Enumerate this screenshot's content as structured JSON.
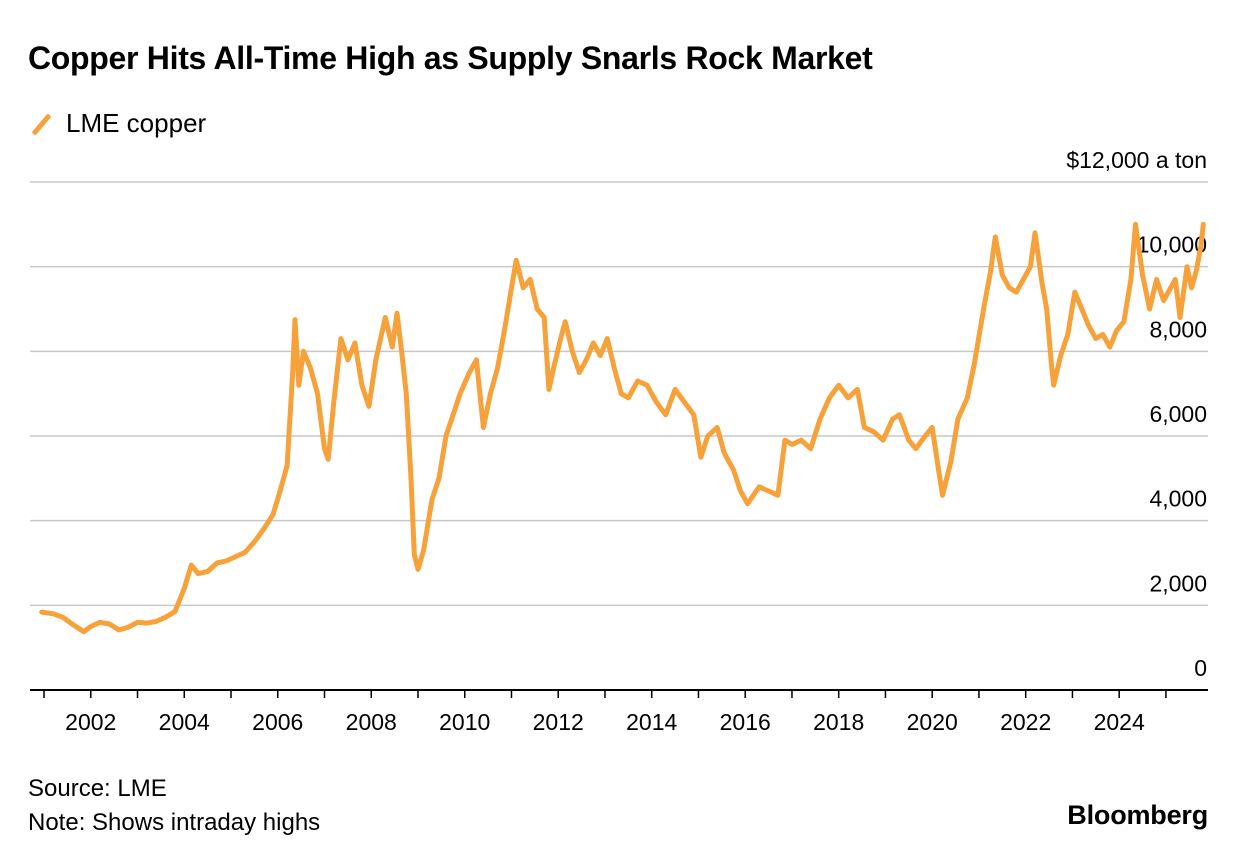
{
  "title": "Copper Hits All-Time High as Supply Snarls Rock Market",
  "legend": {
    "label": "LME copper",
    "color": "#f7a13a"
  },
  "footer": {
    "source": "Source: LME",
    "note": "Note: Shows intraday highs",
    "brand": "Bloomberg"
  },
  "chart_data": {
    "type": "line",
    "title": "Copper Hits All-Time High as Supply Snarls Rock Market",
    "xlabel": "",
    "ylabel": "",
    "y_unit_label": "$12,000 a ton",
    "ylim": [
      0,
      12000
    ],
    "xlim": [
      2000.7,
      2025.9
    ],
    "grid": true,
    "legend_position": "top-left",
    "x_ticks": [
      2002,
      2004,
      2006,
      2008,
      2010,
      2012,
      2014,
      2016,
      2018,
      2020,
      2022,
      2024
    ],
    "x_tick_labels": [
      "2002",
      "2004",
      "2006",
      "2008",
      "2010",
      "2012",
      "2014",
      "2016",
      "2018",
      "2020",
      "2022",
      "2024"
    ],
    "y_ticks": [
      0,
      2000,
      4000,
      6000,
      8000,
      10000,
      12000
    ],
    "y_tick_labels": [
      "0",
      "2,000",
      "4,000",
      "6,000",
      "8,000",
      "10,000",
      "$12,000 a ton"
    ],
    "series": [
      {
        "name": "LME copper",
        "color": "#f7a13a",
        "points": [
          [
            2000.95,
            1840
          ],
          [
            2001.2,
            1800
          ],
          [
            2001.4,
            1720
          ],
          [
            2001.6,
            1560
          ],
          [
            2001.75,
            1450
          ],
          [
            2001.85,
            1380
          ],
          [
            2002.0,
            1500
          ],
          [
            2002.2,
            1600
          ],
          [
            2002.4,
            1560
          ],
          [
            2002.6,
            1420
          ],
          [
            2002.8,
            1480
          ],
          [
            2003.0,
            1600
          ],
          [
            2003.2,
            1580
          ],
          [
            2003.4,
            1620
          ],
          [
            2003.6,
            1720
          ],
          [
            2003.8,
            1850
          ],
          [
            2004.0,
            2400
          ],
          [
            2004.15,
            2950
          ],
          [
            2004.3,
            2750
          ],
          [
            2004.5,
            2800
          ],
          [
            2004.7,
            3000
          ],
          [
            2004.9,
            3050
          ],
          [
            2005.1,
            3150
          ],
          [
            2005.3,
            3250
          ],
          [
            2005.5,
            3500
          ],
          [
            2005.7,
            3800
          ],
          [
            2005.9,
            4150
          ],
          [
            2006.05,
            4700
          ],
          [
            2006.2,
            5300
          ],
          [
            2006.32,
            7500
          ],
          [
            2006.37,
            8750
          ],
          [
            2006.45,
            7200
          ],
          [
            2006.55,
            8000
          ],
          [
            2006.7,
            7600
          ],
          [
            2006.85,
            7000
          ],
          [
            2007.0,
            5700
          ],
          [
            2007.08,
            5450
          ],
          [
            2007.2,
            6800
          ],
          [
            2007.35,
            8300
          ],
          [
            2007.5,
            7800
          ],
          [
            2007.65,
            8200
          ],
          [
            2007.8,
            7200
          ],
          [
            2007.95,
            6700
          ],
          [
            2008.1,
            7800
          ],
          [
            2008.2,
            8300
          ],
          [
            2008.3,
            8800
          ],
          [
            2008.45,
            8100
          ],
          [
            2008.55,
            8900
          ],
          [
            2008.65,
            8000
          ],
          [
            2008.75,
            7000
          ],
          [
            2008.85,
            5000
          ],
          [
            2008.92,
            3200
          ],
          [
            2009.0,
            2850
          ],
          [
            2009.12,
            3300
          ],
          [
            2009.3,
            4500
          ],
          [
            2009.45,
            5000
          ],
          [
            2009.6,
            6000
          ],
          [
            2009.75,
            6500
          ],
          [
            2009.9,
            7000
          ],
          [
            2010.1,
            7500
          ],
          [
            2010.25,
            7800
          ],
          [
            2010.4,
            6200
          ],
          [
            2010.55,
            7000
          ],
          [
            2010.7,
            7600
          ],
          [
            2010.85,
            8500
          ],
          [
            2011.0,
            9500
          ],
          [
            2011.1,
            10150
          ],
          [
            2011.25,
            9500
          ],
          [
            2011.4,
            9700
          ],
          [
            2011.55,
            9000
          ],
          [
            2011.7,
            8800
          ],
          [
            2011.8,
            7100
          ],
          [
            2011.9,
            7600
          ],
          [
            2012.05,
            8300
          ],
          [
            2012.15,
            8700
          ],
          [
            2012.3,
            8000
          ],
          [
            2012.45,
            7500
          ],
          [
            2012.6,
            7800
          ],
          [
            2012.75,
            8200
          ],
          [
            2012.9,
            7900
          ],
          [
            2013.05,
            8300
          ],
          [
            2013.2,
            7600
          ],
          [
            2013.35,
            7000
          ],
          [
            2013.5,
            6900
          ],
          [
            2013.7,
            7300
          ],
          [
            2013.9,
            7200
          ],
          [
            2014.1,
            6800
          ],
          [
            2014.3,
            6500
          ],
          [
            2014.5,
            7100
          ],
          [
            2014.7,
            6800
          ],
          [
            2014.9,
            6500
          ],
          [
            2015.05,
            5500
          ],
          [
            2015.2,
            6000
          ],
          [
            2015.4,
            6200
          ],
          [
            2015.55,
            5600
          ],
          [
            2015.75,
            5200
          ],
          [
            2015.9,
            4700
          ],
          [
            2016.05,
            4400
          ],
          [
            2016.3,
            4800
          ],
          [
            2016.5,
            4700
          ],
          [
            2016.7,
            4600
          ],
          [
            2016.85,
            5900
          ],
          [
            2017.0,
            5800
          ],
          [
            2017.2,
            5900
          ],
          [
            2017.4,
            5700
          ],
          [
            2017.6,
            6400
          ],
          [
            2017.8,
            6900
          ],
          [
            2018.0,
            7200
          ],
          [
            2018.2,
            6900
          ],
          [
            2018.4,
            7100
          ],
          [
            2018.55,
            6200
          ],
          [
            2018.75,
            6100
          ],
          [
            2018.95,
            5900
          ],
          [
            2019.15,
            6400
          ],
          [
            2019.3,
            6500
          ],
          [
            2019.5,
            5900
          ],
          [
            2019.65,
            5700
          ],
          [
            2019.85,
            6000
          ],
          [
            2020.0,
            6200
          ],
          [
            2020.15,
            5100
          ],
          [
            2020.22,
            4600
          ],
          [
            2020.4,
            5400
          ],
          [
            2020.55,
            6400
          ],
          [
            2020.75,
            6900
          ],
          [
            2020.9,
            7700
          ],
          [
            2021.1,
            9000
          ],
          [
            2021.25,
            9900
          ],
          [
            2021.35,
            10700
          ],
          [
            2021.5,
            9800
          ],
          [
            2021.65,
            9500
          ],
          [
            2021.8,
            9400
          ],
          [
            2021.95,
            9700
          ],
          [
            2022.1,
            10000
          ],
          [
            2022.2,
            10800
          ],
          [
            2022.35,
            9600
          ],
          [
            2022.45,
            9000
          ],
          [
            2022.55,
            7700
          ],
          [
            2022.6,
            7200
          ],
          [
            2022.75,
            7900
          ],
          [
            2022.9,
            8400
          ],
          [
            2023.05,
            9400
          ],
          [
            2023.2,
            9000
          ],
          [
            2023.35,
            8600
          ],
          [
            2023.5,
            8300
          ],
          [
            2023.65,
            8400
          ],
          [
            2023.8,
            8100
          ],
          [
            2023.95,
            8500
          ],
          [
            2024.1,
            8700
          ],
          [
            2024.25,
            9700
          ],
          [
            2024.35,
            11000
          ],
          [
            2024.5,
            9800
          ],
          [
            2024.65,
            9000
          ],
          [
            2024.8,
            9700
          ],
          [
            2024.95,
            9200
          ],
          [
            2025.05,
            9400
          ],
          [
            2025.2,
            9700
          ],
          [
            2025.3,
            8800
          ],
          [
            2025.45,
            10000
          ],
          [
            2025.55,
            9500
          ],
          [
            2025.65,
            9900
          ],
          [
            2025.75,
            10500
          ],
          [
            2025.8,
            11000
          ]
        ]
      }
    ]
  }
}
